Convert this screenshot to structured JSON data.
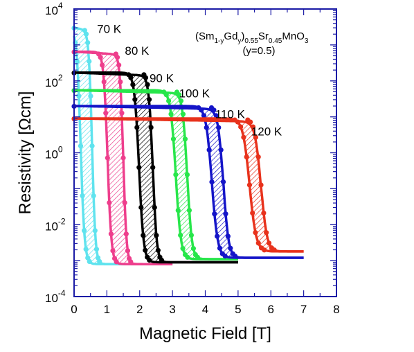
{
  "chart_data": {
    "type": "line",
    "title": "",
    "xlabel": "Magnetic Field [T]",
    "ylabel": "Resistivity [Ωcm]",
    "xlim": [
      0,
      8
    ],
    "ylim_log10": [
      -4,
      4
    ],
    "y_scale": "log",
    "grid": false,
    "legend": "none",
    "frame_color": "#1a1aa6",
    "x_ticks": [
      "0",
      "1",
      "2",
      "3",
      "4",
      "5",
      "6",
      "7",
      "8"
    ],
    "y_tick_exponents": [
      "4",
      "2",
      "0",
      "-2",
      "-4"
    ],
    "y_tick_base": "10",
    "annotation": {
      "line1_parts": [
        "(Sm",
        "1-y",
        "Gd",
        "y",
        ")",
        "0.55",
        "Sr",
        "0.45",
        "MnO",
        "3"
      ],
      "line2": "(y=0.5)"
    },
    "series": [
      {
        "name": "70 K",
        "color": "#5fe3ee",
        "rho_high": 3000,
        "rho_low": 0.0008,
        "h_up": 0.55,
        "h_down": 0.2,
        "w_up": 0.05,
        "w_down": 0.06,
        "h_max": 3.0,
        "label_x": 0.7,
        "label_rho": 2800
      },
      {
        "name": "80 K",
        "color": "#ee3e8c",
        "rho_high": 650,
        "rho_low": 0.0008,
        "h_up": 1.5,
        "h_down": 1.02,
        "w_up": 0.05,
        "w_down": 0.06,
        "h_max": 3.0,
        "label_x": 1.55,
        "label_rho": 700
      },
      {
        "name": "90 K",
        "color": "#000000",
        "rho_high": 170,
        "rho_low": 0.0009,
        "h_up": 2.4,
        "h_down": 1.98,
        "w_up": 0.06,
        "w_down": 0.07,
        "h_max": 5.0,
        "label_x": 2.3,
        "label_rho": 120
      },
      {
        "name": "100 K",
        "color": "#27e64a",
        "rho_high": 55,
        "rho_low": 0.0011,
        "h_up": 3.45,
        "h_down": 3.1,
        "w_up": 0.07,
        "w_down": 0.08,
        "h_max": 5.0,
        "label_x": 3.2,
        "label_rho": 45
      },
      {
        "name": "110 K",
        "color": "#1414c8",
        "rho_high": 20,
        "rho_low": 0.0012,
        "h_up": 4.55,
        "h_down": 4.2,
        "w_up": 0.08,
        "w_down": 0.09,
        "h_max": 7.0,
        "label_x": 4.3,
        "label_rho": 12
      },
      {
        "name": "120 K",
        "color": "#e8321c",
        "rho_high": 9,
        "rho_low": 0.0018,
        "h_up": 5.7,
        "h_down": 5.35,
        "w_up": 0.09,
        "w_down": 0.1,
        "h_max": 7.0,
        "label_x": 5.4,
        "label_rho": 4
      }
    ]
  }
}
